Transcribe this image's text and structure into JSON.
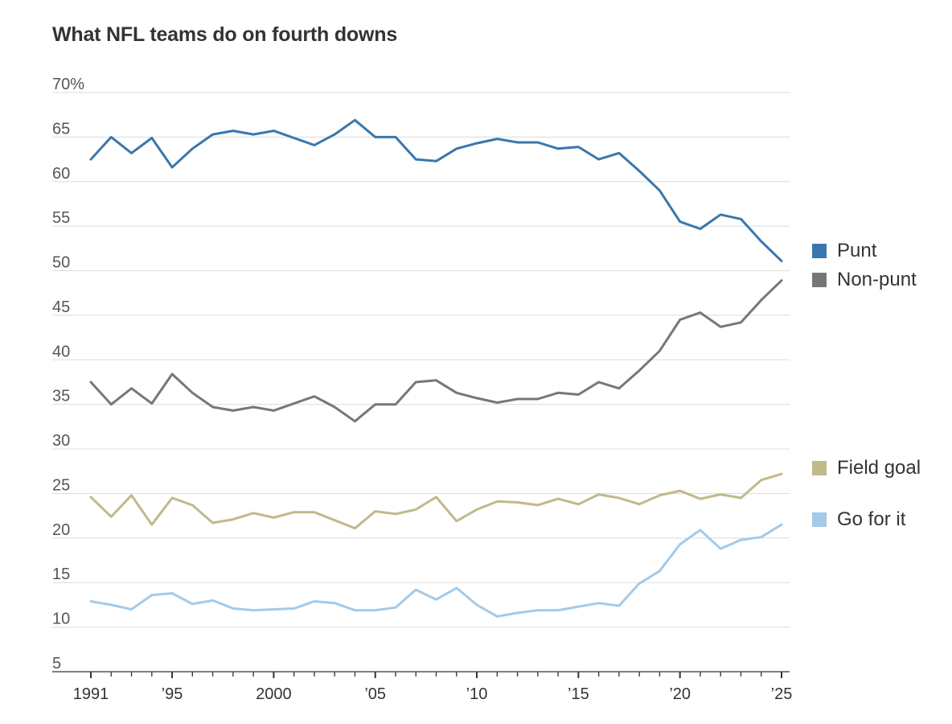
{
  "chart_data": {
    "type": "line",
    "title": "What NFL teams do on fourth downs",
    "xlabel": "",
    "ylabel": "",
    "ylim": [
      5,
      70
    ],
    "yticks": [
      5,
      10,
      15,
      20,
      25,
      30,
      35,
      40,
      45,
      50,
      55,
      60,
      65,
      70
    ],
    "ytick_labels": [
      "5",
      "10",
      "15",
      "20",
      "25",
      "30",
      "35",
      "40",
      "45",
      "50",
      "55",
      "60",
      "65",
      "70%"
    ],
    "xlim": [
      1991,
      2025
    ],
    "xticks": [
      1991,
      1995,
      2000,
      2005,
      2010,
      2015,
      2020,
      2025
    ],
    "xtick_labels": [
      "1991",
      "’95",
      "2000",
      "’05",
      "’10",
      "’15",
      "’20",
      "’25"
    ],
    "x": [
      1991,
      1992,
      1993,
      1994,
      1995,
      1996,
      1997,
      1998,
      1999,
      2000,
      2001,
      2002,
      2003,
      2004,
      2005,
      2006,
      2007,
      2008,
      2009,
      2010,
      2011,
      2012,
      2013,
      2014,
      2015,
      2016,
      2017,
      2018,
      2019,
      2020,
      2021,
      2022,
      2023,
      2024,
      2025
    ],
    "series": [
      {
        "name": "Punt",
        "color": "#3a77ab",
        "values": [
          62.5,
          65.0,
          63.2,
          64.9,
          61.6,
          63.7,
          65.3,
          65.7,
          65.3,
          65.7,
          64.9,
          64.1,
          65.3,
          66.9,
          65.0,
          65.0,
          62.5,
          62.3,
          63.7,
          64.3,
          64.8,
          64.4,
          64.4,
          63.7,
          63.9,
          62.5,
          63.2,
          61.2,
          59.0,
          55.5,
          54.7,
          56.3,
          55.8,
          53.3,
          51.1
        ]
      },
      {
        "name": "Non-punt",
        "color": "#777777",
        "values": [
          37.5,
          35.0,
          36.8,
          35.1,
          38.4,
          36.3,
          34.7,
          34.3,
          34.7,
          34.3,
          35.1,
          35.9,
          34.7,
          33.1,
          35.0,
          35.0,
          37.5,
          37.7,
          36.3,
          35.7,
          35.2,
          35.6,
          35.6,
          36.3,
          36.1,
          37.5,
          36.8,
          38.8,
          41.0,
          44.5,
          45.3,
          43.7,
          44.2,
          46.7,
          48.9
        ]
      },
      {
        "name": "Field goal",
        "color": "#c1b98a",
        "values": [
          24.6,
          22.4,
          24.8,
          21.5,
          24.5,
          23.7,
          21.7,
          22.1,
          22.8,
          22.3,
          22.9,
          22.9,
          22.0,
          21.1,
          23.0,
          22.7,
          23.2,
          24.6,
          21.9,
          23.2,
          24.1,
          24.0,
          23.7,
          24.4,
          23.8,
          24.9,
          24.5,
          23.8,
          24.8,
          25.3,
          24.4,
          24.9,
          24.5,
          26.5,
          27.2
        ]
      },
      {
        "name": "Go for it",
        "color": "#a3cae9",
        "values": [
          12.9,
          12.5,
          12.0,
          13.6,
          13.8,
          12.6,
          13.0,
          12.1,
          11.9,
          12.0,
          12.1,
          12.9,
          12.7,
          11.9,
          11.9,
          12.2,
          14.2,
          13.1,
          14.4,
          12.5,
          11.2,
          11.6,
          11.9,
          11.9,
          12.3,
          12.7,
          12.4,
          14.9,
          16.3,
          19.3,
          20.9,
          18.8,
          19.8,
          20.1,
          21.5
        ]
      }
    ],
    "legend": [
      "Punt",
      "Non-punt",
      "Field goal",
      "Go for it"
    ]
  }
}
